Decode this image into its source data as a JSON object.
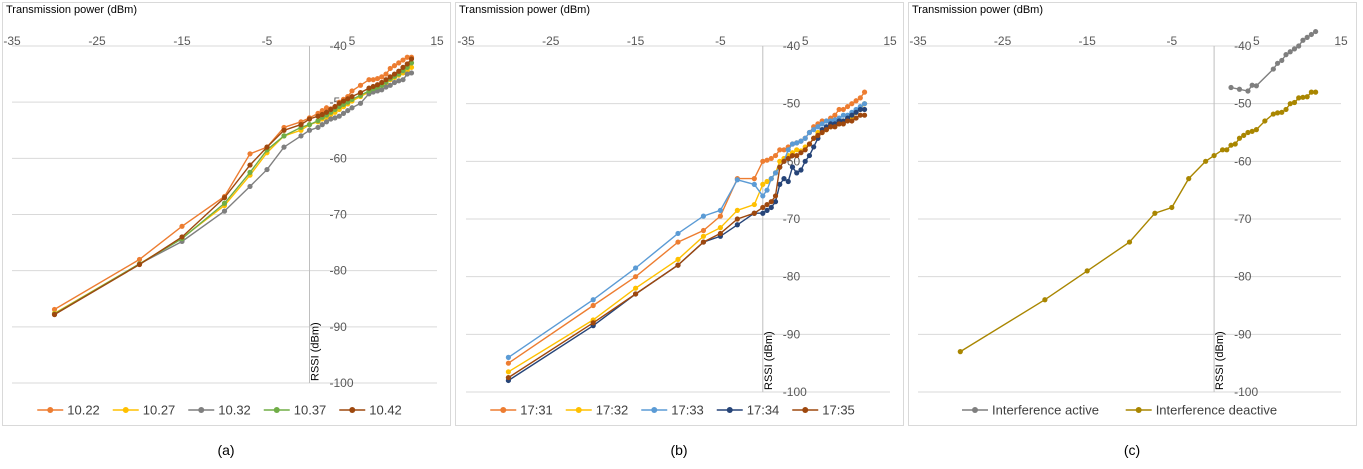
{
  "chart_data": [
    {
      "type": "line",
      "xlabel": "Transmission power (dBm)",
      "ylabel": "RSSI (dBm)",
      "xlim": [
        -35,
        15
      ],
      "ylim": [
        -100,
        -40
      ],
      "xticks": [
        -35,
        -25,
        -15,
        -5,
        5,
        15
      ],
      "yticks": [
        -40,
        -50,
        -60,
        -70,
        -80,
        -90,
        -100
      ],
      "legend": "bottom",
      "caption": "(a)",
      "series": [
        {
          "name": "10.22",
          "color": "#ED7D31",
          "x": [
            -30,
            -20,
            -15,
            -10,
            -7,
            -5,
            -3,
            -1,
            0,
            1,
            1.5,
            2,
            2.5,
            3,
            3.5,
            4,
            4.5,
            5,
            6,
            7,
            7.5,
            8,
            8.5,
            9,
            9.5,
            10,
            10.5,
            11,
            11.5,
            12
          ],
          "y": [
            -86.9,
            -78,
            -72.1,
            -66.8,
            -59.2,
            -58,
            -54.5,
            -53.5,
            -52.8,
            -52,
            -51.5,
            -51,
            -51.2,
            -50.8,
            -50,
            -49.5,
            -49,
            -48,
            -47,
            -46,
            -46,
            -45.8,
            -45.5,
            -45,
            -44,
            -43.5,
            -43,
            -42.5,
            -42,
            -42
          ]
        },
        {
          "name": "10.27",
          "color": "#FFC000",
          "x": [
            -30,
            -20,
            -15,
            -10,
            -7,
            -5,
            -3,
            -1,
            0,
            1,
            1.5,
            2,
            2.5,
            3,
            3.5,
            4,
            4.5,
            5,
            6,
            7,
            7.5,
            8,
            8.5,
            9,
            9.5,
            10,
            10.5,
            11,
            11.5,
            12
          ],
          "y": [
            -87.6,
            -78.8,
            -74.2,
            -68.4,
            -63,
            -59,
            -56,
            -55,
            -54,
            -53.5,
            -53,
            -52.7,
            -52.2,
            -51.8,
            -51.3,
            -50.8,
            -50.3,
            -49.8,
            -49,
            -48.2,
            -48,
            -47.5,
            -47,
            -46.6,
            -46,
            -45.6,
            -45.2,
            -44.8,
            -44.4,
            -43.8
          ]
        },
        {
          "name": "10.32",
          "color": "#7F7F7F",
          "x": [
            -30,
            -20,
            -15,
            -10,
            -7,
            -5,
            -3,
            -1,
            0,
            1,
            1.5,
            2,
            2.5,
            3,
            3.5,
            4,
            4.5,
            5,
            6,
            7,
            7.5,
            8,
            8.5,
            9,
            9.5,
            10,
            10.5,
            11,
            11.5,
            12
          ],
          "y": [
            -87.8,
            -78.8,
            -74.8,
            -69.4,
            -65,
            -62,
            -58,
            -56,
            -55,
            -54.5,
            -54,
            -53.5,
            -53,
            -52.8,
            -52.5,
            -52,
            -51.5,
            -51,
            -50.2,
            -48.5,
            -48.2,
            -48,
            -47.8,
            -47.3,
            -47,
            -46.5,
            -46.2,
            -46,
            -45,
            -44.8
          ]
        },
        {
          "name": "10.37",
          "color": "#70AD47",
          "x": [
            -30,
            -20,
            -15,
            -10,
            -7,
            -5,
            -3,
            -1,
            0,
            1,
            1.5,
            2,
            2.5,
            3,
            3.5,
            4,
            4.5,
            5,
            6,
            7,
            7.5,
            8,
            8.5,
            9,
            9.5,
            10,
            10.5,
            11,
            11.5,
            12
          ],
          "y": [
            -87.7,
            -78.8,
            -74.3,
            -68,
            -62.5,
            -58.5,
            -56,
            -54.5,
            -54,
            -53.3,
            -52.7,
            -52.3,
            -51.8,
            -51.3,
            -50.8,
            -50.4,
            -50,
            -49.5,
            -48.8,
            -48,
            -47.6,
            -47.3,
            -47,
            -46.4,
            -45.8,
            -45.4,
            -45,
            -44.4,
            -43.8,
            -43
          ]
        },
        {
          "name": "10.42",
          "color": "#9E480E",
          "x": [
            -30,
            -20,
            -15,
            -10,
            -7,
            -5,
            -3,
            -1,
            0,
            1,
            1.5,
            2,
            2.5,
            3,
            3.5,
            4,
            4.5,
            5,
            6,
            7,
            7.5,
            8,
            8.5,
            9,
            9.5,
            10,
            10.5,
            11,
            11.5,
            12
          ],
          "y": [
            -87.8,
            -78.9,
            -74,
            -67,
            -61.2,
            -58,
            -55,
            -54,
            -53,
            -52.5,
            -52.2,
            -51.8,
            -51.3,
            -50.8,
            -50.2,
            -49.8,
            -49.4,
            -49,
            -48.3,
            -47.5,
            -47.2,
            -46.9,
            -46.5,
            -46,
            -45.5,
            -45,
            -44.5,
            -43.8,
            -43.2,
            -42.3
          ]
        }
      ]
    },
    {
      "type": "line",
      "xlabel": "Transmission power (dBm)",
      "ylabel": "RSSI (dBm)",
      "xlim": [
        -35,
        15
      ],
      "ylim": [
        -100,
        -40
      ],
      "xticks": [
        -35,
        -25,
        -15,
        -5,
        5,
        15
      ],
      "yticks": [
        -40,
        -50,
        -60,
        -70,
        -80,
        -90,
        -100
      ],
      "legend": "bottom",
      "caption": "(b)",
      "series": [
        {
          "name": "17:31",
          "color": "#ED7D31",
          "x": [
            -30,
            -20,
            -15,
            -10,
            -7,
            -5,
            -3,
            -1,
            0,
            0.5,
            1,
            1.5,
            2,
            2.5,
            3,
            3.5,
            4,
            4.5,
            5,
            5.5,
            6,
            6.5,
            7,
            7.5,
            8,
            8.5,
            9,
            9.5,
            10,
            10.5,
            11,
            11.5,
            12
          ],
          "y": [
            -95,
            -85,
            -80,
            -74,
            -72,
            -69.5,
            -63,
            -63,
            -60,
            -59.8,
            -59.5,
            -59,
            -58,
            -58,
            -57.5,
            -57,
            -56.8,
            -56.5,
            -56,
            -55,
            -54,
            -53.5,
            -53,
            -53,
            -52.5,
            -52,
            -51,
            -51,
            -50.5,
            -50,
            -49.5,
            -49,
            -48
          ]
        },
        {
          "name": "17:32",
          "color": "#FFC000",
          "x": [
            -30,
            -20,
            -15,
            -10,
            -7,
            -5,
            -3,
            -1,
            0,
            0.5,
            1,
            1.5,
            2,
            2.5,
            3,
            3.5,
            4,
            4.5,
            5,
            5.5,
            6,
            6.5,
            7,
            7.5,
            8,
            8.5,
            9,
            9.5,
            10,
            10.5,
            11,
            11.5,
            12
          ],
          "y": [
            -96.5,
            -87.5,
            -82,
            -77,
            -73,
            -71.5,
            -68.5,
            -67.5,
            -64,
            -63.5,
            -63,
            -62,
            -60,
            -59.5,
            -59,
            -58.5,
            -58,
            -58.2,
            -57.5,
            -57,
            -56,
            -55,
            -55,
            -54.5,
            -54,
            -53.8,
            -53.5,
            -53,
            -52.8,
            -52.5,
            -51.5,
            -51,
            -50
          ]
        },
        {
          "name": "17:33",
          "color": "#5B9BD5",
          "x": [
            -30,
            -20,
            -15,
            -10,
            -7,
            -5,
            -3,
            -1,
            0,
            0.5,
            1,
            1.5,
            2,
            2.5,
            3,
            3.5,
            4,
            4.5,
            5,
            5.5,
            6,
            6.5,
            7,
            7.5,
            8,
            8.5,
            9,
            9.5,
            10,
            10.5,
            11,
            11.5,
            12
          ],
          "y": [
            -94,
            -84,
            -78.5,
            -72.5,
            -69.5,
            -68.5,
            -63.2,
            -64,
            -66,
            -65,
            -63,
            -62,
            -61,
            -60,
            -58,
            -57,
            -56.8,
            -56.5,
            -56,
            -55,
            -54.5,
            -54,
            -53.5,
            -53,
            -53,
            -52.8,
            -52.5,
            -52,
            -52,
            -51.5,
            -51,
            -50.5,
            -50
          ]
        },
        {
          "name": "17:34",
          "color": "#264478",
          "x": [
            -30,
            -20,
            -15,
            -10,
            -7,
            -5,
            -3,
            -1,
            0,
            0.5,
            1,
            1.5,
            2,
            2.5,
            3,
            3.5,
            4,
            4.5,
            5,
            5.5,
            6,
            6.5,
            7,
            7.5,
            8,
            8.5,
            9,
            9.5,
            10,
            10.5,
            11,
            11.5,
            12
          ],
          "y": [
            -98,
            -88.5,
            -83,
            -78,
            -74,
            -73,
            -71,
            -69,
            -69,
            -68.5,
            -68,
            -67,
            -64,
            -63,
            -63.5,
            -61,
            -62,
            -61.5,
            -60,
            -59,
            -57.5,
            -56,
            -54.5,
            -54,
            -53.5,
            -53.5,
            -53,
            -53,
            -52.5,
            -52,
            -51.5,
            -51,
            -51
          ]
        },
        {
          "name": "17:35",
          "color": "#9E480E",
          "x": [
            -30,
            -20,
            -15,
            -10,
            -7,
            -5,
            -3,
            -1,
            0,
            0.5,
            1,
            1.5,
            2,
            2.5,
            3,
            3.5,
            4,
            4.5,
            5,
            5.5,
            6,
            6.5,
            7,
            7.5,
            8,
            8.5,
            9,
            9.5,
            10,
            10.5,
            11,
            11.5,
            12
          ],
          "y": [
            -97.5,
            -88,
            -83,
            -78,
            -74,
            -72.5,
            -70,
            -69,
            -68,
            -67.5,
            -67,
            -66,
            -61,
            -60,
            -59.5,
            -59,
            -59,
            -58.5,
            -58,
            -57,
            -56,
            -55.5,
            -55,
            -54.5,
            -54,
            -54,
            -53.5,
            -53.5,
            -53,
            -53,
            -52.5,
            -52,
            -52
          ]
        }
      ]
    },
    {
      "type": "line",
      "xlabel": "Transmission power (dBm)",
      "ylabel": "RSSI (dBm)",
      "xlim": [
        -35,
        15
      ],
      "ylim": [
        -100,
        -40
      ],
      "xticks": [
        -35,
        -25,
        -15,
        -5,
        5,
        15
      ],
      "yticks": [
        -40,
        -50,
        -60,
        -70,
        -80,
        -90,
        -100
      ],
      "legend": "bottom",
      "caption": "(c)",
      "series": [
        {
          "name": "Interference active",
          "color": "#7F7F7F",
          "x": [
            2,
            3,
            4,
            4.5,
            5,
            7,
            7.5,
            8,
            8.5,
            9,
            9.5,
            10,
            10.5,
            11,
            11.5,
            12
          ],
          "y": [
            -47.2,
            -47.5,
            -47.8,
            -46.8,
            -46.9,
            -44,
            -43,
            -42.5,
            -41.5,
            -41,
            -40.5,
            -40,
            -39,
            -38.5,
            -38,
            -37.5
          ]
        },
        {
          "name": "Interference deactive",
          "color": "#A98600",
          "x": [
            -30,
            -20,
            -15,
            -10,
            -7,
            -5,
            -3,
            -1,
            0,
            1,
            1.5,
            2,
            2.5,
            3,
            3.5,
            4,
            4.5,
            5,
            6,
            7,
            7.5,
            8,
            8.5,
            9,
            9.5,
            10,
            10.5,
            11,
            11.5,
            12
          ],
          "y": [
            -93,
            -84,
            -79,
            -74,
            -69,
            -68,
            -63,
            -60,
            -59,
            -58,
            -58,
            -57.2,
            -57,
            -56,
            -55.5,
            -55,
            -54.8,
            -54.5,
            -53,
            -51.8,
            -51.6,
            -51.5,
            -51,
            -50,
            -49.8,
            -49,
            -48.9,
            -48.8,
            -48,
            -48
          ]
        }
      ]
    }
  ]
}
